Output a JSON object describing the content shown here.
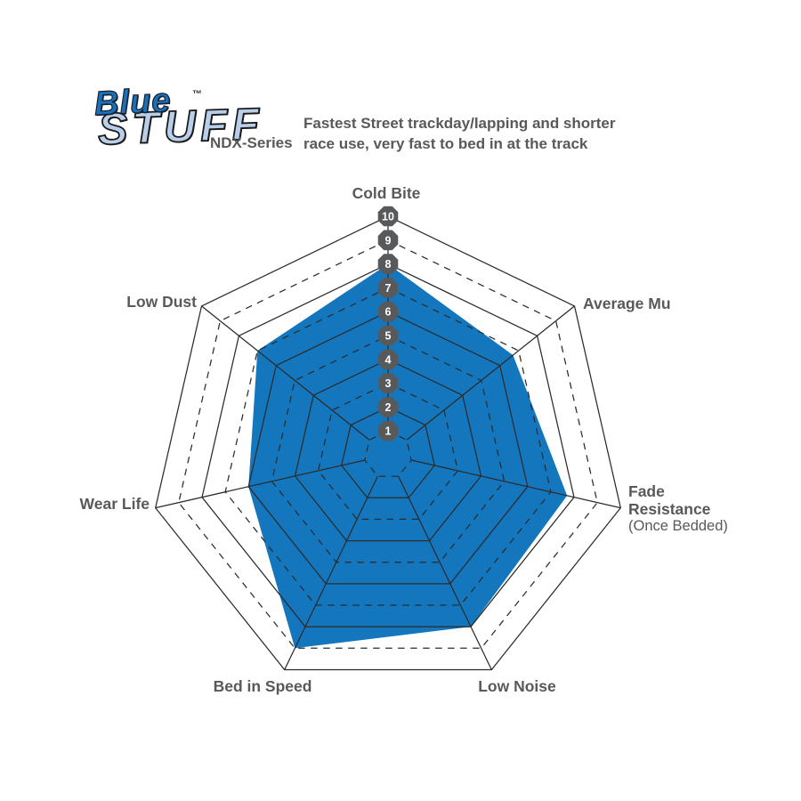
{
  "logo": {
    "word1": "Blue",
    "word2": "STUFF",
    "trademark": "TM",
    "series": "NDX-Series",
    "brand_blue": "#1B70B8",
    "brand_light_blue": "#B9CFE9"
  },
  "header": {
    "description": "Fastest Street trackday/lapping and shorter race use, very fast to bed in at the track"
  },
  "chart_data": {
    "type": "radar",
    "title": "",
    "categories": [
      "Cold Bite",
      "Average Mu",
      "Fade Resistance (Once Bedded)",
      "Low Noise",
      "Bed in Speed",
      "Wear Life",
      "Low Dust"
    ],
    "values": [
      8,
      6.7,
      7.7,
      8,
      9,
      6,
      7
    ],
    "axes": [
      {
        "label": "Cold Bite",
        "value": 8
      },
      {
        "label": "Average Mu",
        "value": 6.7
      },
      {
        "label": "Fade Resistance",
        "lines": [
          "Fade",
          "Resistance"
        ],
        "sublabel": "(Once Bedded)",
        "value": 7.7
      },
      {
        "label": "Low Noise",
        "value": 8
      },
      {
        "label": "Bed in Speed",
        "value": 9
      },
      {
        "label": "Wear Life",
        "value": 6
      },
      {
        "label": "Low Dust",
        "value": 7
      }
    ],
    "scale": {
      "min": 1,
      "max": 10,
      "tick_labels": [
        "1",
        "2",
        "3",
        "4",
        "5",
        "6",
        "7",
        "8",
        "9",
        "10"
      ],
      "tick_axis": "Cold Bite"
    },
    "rings": {
      "count": 10,
      "solid_rings": "even",
      "dashed_rings": "odd"
    },
    "legend": "none",
    "grid": true,
    "colors": {
      "fill": "#1477BE",
      "data_outline": "#FFFFFF",
      "grid": "#2B2B2B",
      "badge": "#58595B",
      "badge_text": "#FFFFFF",
      "label_text": "#58595B"
    }
  }
}
